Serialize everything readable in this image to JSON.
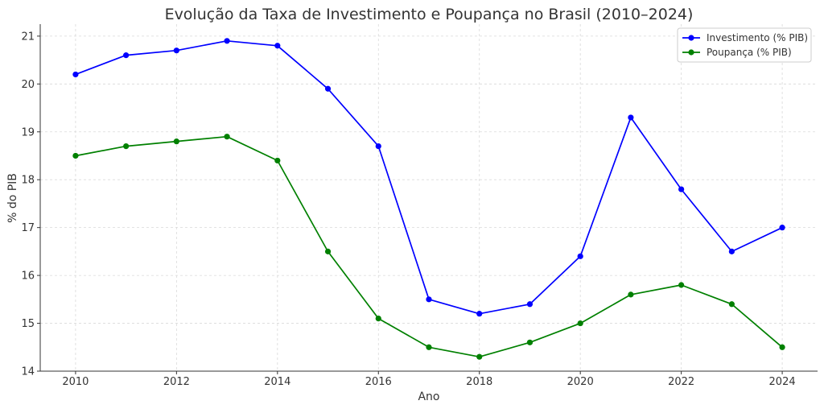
{
  "chart_data": {
    "type": "line",
    "title": "Evolução da Taxa de Investimento e Poupança no Brasil (2010–2024)",
    "xlabel": "Ano",
    "ylabel": "% do PIB",
    "x": [
      2010,
      2011,
      2012,
      2013,
      2014,
      2015,
      2016,
      2017,
      2018,
      2019,
      2020,
      2021,
      2022,
      2023,
      2024
    ],
    "xticks": [
      2010,
      2012,
      2014,
      2016,
      2018,
      2020,
      2022,
      2024
    ],
    "yticks": [
      14,
      15,
      16,
      17,
      18,
      19,
      20,
      21
    ],
    "xlim": [
      2009.3,
      2024.7
    ],
    "ylim": [
      14,
      21.25
    ],
    "grid": true,
    "legend_position": "top-right",
    "series": [
      {
        "name": "Investimento (% PIB)",
        "color": "#0000ff",
        "values": [
          20.2,
          20.6,
          20.7,
          20.9,
          20.8,
          19.9,
          18.7,
          15.5,
          15.2,
          15.4,
          16.4,
          19.3,
          17.8,
          16.5,
          17.0
        ]
      },
      {
        "name": "Poupança (% PIB)",
        "color": "#008000",
        "values": [
          18.5,
          18.7,
          18.8,
          18.9,
          18.4,
          16.5,
          15.1,
          14.5,
          14.3,
          14.6,
          15.0,
          15.6,
          15.8,
          15.4,
          14.5
        ]
      }
    ]
  }
}
